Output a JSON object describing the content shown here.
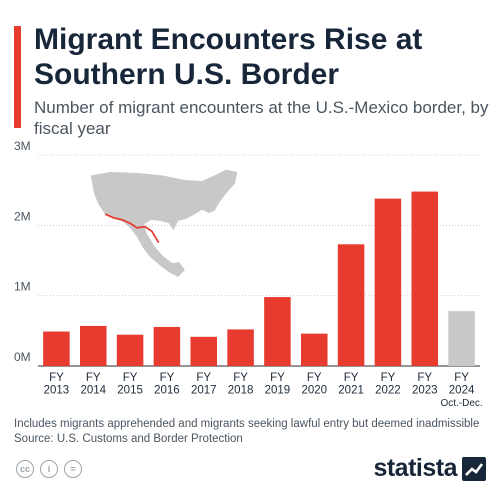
{
  "header": {
    "title": "Migrant Encounters Rise at Southern U.S. Border",
    "subtitle": "Number of migrant encounters at the U.S.-Mexico border, by fiscal year"
  },
  "footer": {
    "note": "Includes migrants apprehended and migrants seeking lawful entry but deemed inadmissible",
    "source": "Source: U.S. Customs and Border Protection",
    "brand": "statista",
    "license_icons": [
      "cc-icon",
      "person-icon",
      "equals-icon"
    ],
    "license_glyphs": [
      "cc",
      "i",
      "="
    ]
  },
  "colors": {
    "bar": "#e63b2e",
    "bar_partial": "#c8c8c8",
    "grid": "#cccccc",
    "map_land": "#c8c8c8"
  },
  "chart_data": {
    "type": "bar",
    "categories": [
      "FY 2013",
      "FY 2014",
      "FY 2015",
      "FY 2016",
      "FY 2017",
      "FY 2018",
      "FY 2019",
      "FY 2020",
      "FY 2021",
      "FY 2022",
      "FY 2023",
      "FY 2024"
    ],
    "category_lines": [
      [
        "FY",
        "2013"
      ],
      [
        "FY",
        "2014"
      ],
      [
        "FY",
        "2015"
      ],
      [
        "FY",
        "2016"
      ],
      [
        "FY",
        "2017"
      ],
      [
        "FY",
        "2018"
      ],
      [
        "FY",
        "2019"
      ],
      [
        "FY",
        "2020"
      ],
      [
        "FY",
        "2021"
      ],
      [
        "FY",
        "2022"
      ],
      [
        "FY",
        "2023"
      ],
      [
        "FY",
        "2024",
        "Oct.-Dec."
      ]
    ],
    "values": [
      490000,
      570000,
      445000,
      555000,
      415000,
      520000,
      980000,
      460000,
      1730000,
      2380000,
      2480000,
      780000
    ],
    "partial_period": [
      false,
      false,
      false,
      false,
      false,
      false,
      false,
      false,
      false,
      false,
      false,
      true
    ],
    "yticks": [
      0,
      1000000,
      2000000,
      3000000
    ],
    "ytick_labels": [
      "0M",
      "1M",
      "2M",
      "3M"
    ],
    "ylim": [
      0,
      3000000
    ],
    "title": "Migrant Encounters Rise at Southern U.S. Border",
    "xlabel": "",
    "ylabel": "",
    "grid": true,
    "legend": false
  }
}
